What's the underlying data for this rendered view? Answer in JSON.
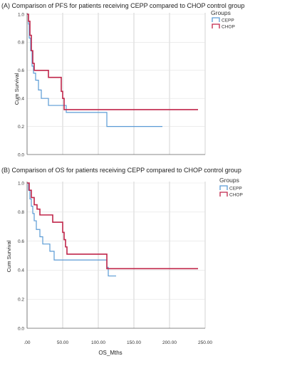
{
  "colors": {
    "cepp": "#5b9bd5",
    "chop": "#c0264a",
    "grid": "#c8c8c8",
    "axis": "#666666"
  },
  "chart_data": [
    {
      "type": "line",
      "subtype": "kaplan-meier-step",
      "title": "(A) Comparison of PFS for patients receiving CEPP compared to CHOP control group",
      "ylabel": "Cum Survival",
      "xlabel": "",
      "xlim": [
        0,
        250
      ],
      "ylim": [
        0,
        1.0
      ],
      "yticks": [
        "0.0",
        "0.2",
        "0.4",
        "0.6",
        "0.8",
        "1.0"
      ],
      "xgrid": [
        0,
        50,
        100,
        150,
        200,
        250
      ],
      "legend": {
        "title": "Groups",
        "position": "top-right"
      },
      "series": [
        {
          "name": "CEPP",
          "color": "#5b9bd5",
          "points": [
            [
              0,
              1.0
            ],
            [
              2,
              0.93
            ],
            [
              3,
              0.83
            ],
            [
              5,
              0.74
            ],
            [
              7,
              0.63
            ],
            [
              9,
              0.58
            ],
            [
              12,
              0.53
            ],
            [
              16,
              0.46
            ],
            [
              20,
              0.4
            ],
            [
              27,
              0.4
            ],
            [
              30,
              0.35
            ],
            [
              52,
              0.35
            ],
            [
              55,
              0.3
            ],
            [
              110,
              0.3
            ],
            [
              112,
              0.2
            ],
            [
              190,
              0.2
            ]
          ]
        },
        {
          "name": "CHOP",
          "color": "#c0264a",
          "points": [
            [
              0,
              1.0
            ],
            [
              2,
              0.95
            ],
            [
              4,
              0.85
            ],
            [
              6,
              0.74
            ],
            [
              8,
              0.65
            ],
            [
              10,
              0.6
            ],
            [
              28,
              0.6
            ],
            [
              30,
              0.55
            ],
            [
              45,
              0.55
            ],
            [
              48,
              0.45
            ],
            [
              50,
              0.4
            ],
            [
              52,
              0.32
            ],
            [
              240,
              0.32
            ]
          ]
        }
      ]
    },
    {
      "type": "line",
      "subtype": "kaplan-meier-step",
      "title": "(B) Comparison of OS for patients receiving CEPP compared to CHOP control group",
      "ylabel": "Cum Survival",
      "xlabel": "OS_Mths",
      "xlim": [
        0,
        250
      ],
      "ylim": [
        0,
        1.0
      ],
      "yticks": [
        "0.0",
        "0.2",
        "0.4",
        "0.6",
        "0.8",
        "1.0"
      ],
      "xticks": [
        ".00",
        "50.00",
        "100.00",
        "150.00",
        "200.00",
        "250.00"
      ],
      "xtick_values": [
        0,
        50,
        100,
        150,
        200,
        250
      ],
      "legend": {
        "title": "Groups",
        "position": "top-right"
      },
      "series": [
        {
          "name": "CEPP",
          "color": "#5b9bd5",
          "points": [
            [
              0,
              1.0
            ],
            [
              2,
              0.95
            ],
            [
              4,
              0.89
            ],
            [
              6,
              0.84
            ],
            [
              8,
              0.79
            ],
            [
              10,
              0.74
            ],
            [
              13,
              0.68
            ],
            [
              18,
              0.63
            ],
            [
              22,
              0.58
            ],
            [
              32,
              0.53
            ],
            [
              38,
              0.47
            ],
            [
              110,
              0.47
            ],
            [
              112,
              0.42
            ],
            [
              114,
              0.36
            ],
            [
              125,
              0.36
            ]
          ]
        },
        {
          "name": "CHOP",
          "color": "#c0264a",
          "points": [
            [
              0,
              1.0
            ],
            [
              3,
              0.95
            ],
            [
              6,
              0.9
            ],
            [
              10,
              0.85
            ],
            [
              14,
              0.82
            ],
            [
              18,
              0.78
            ],
            [
              34,
              0.78
            ],
            [
              36,
              0.73
            ],
            [
              48,
              0.73
            ],
            [
              50,
              0.66
            ],
            [
              52,
              0.61
            ],
            [
              54,
              0.56
            ],
            [
              56,
              0.51
            ],
            [
              110,
              0.51
            ],
            [
              112,
              0.41
            ],
            [
              240,
              0.41
            ]
          ]
        }
      ]
    }
  ]
}
